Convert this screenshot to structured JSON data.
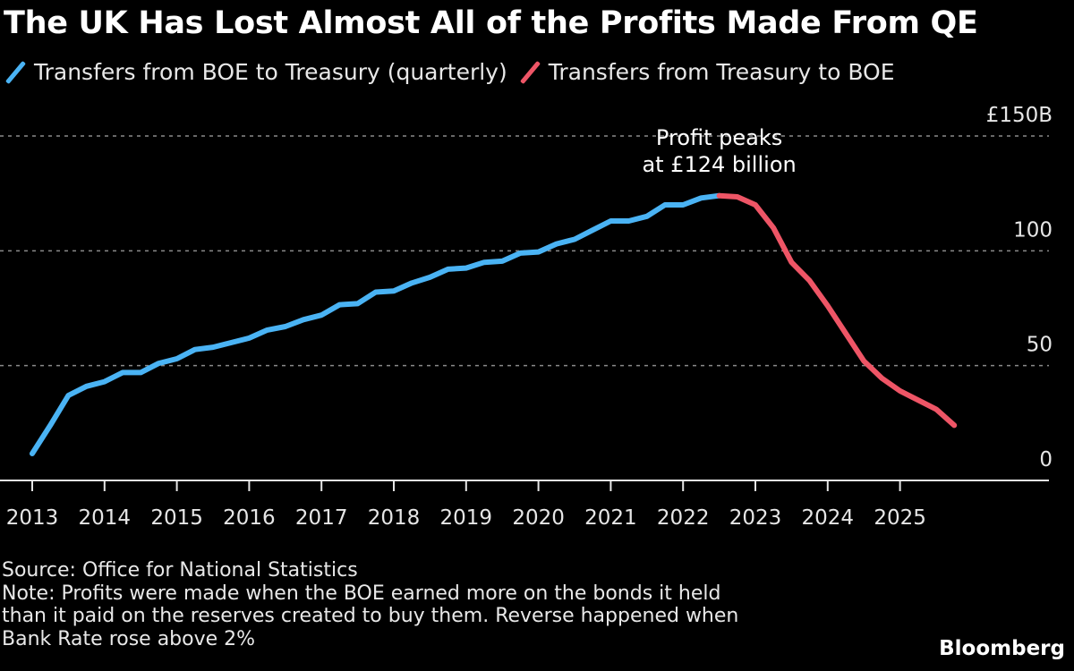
{
  "title": "The UK Has Lost Almost All of the Profits Made From QE",
  "legend": [
    {
      "label": "Transfers from BOE to Treasury (quarterly)",
      "color": "#4ab3f4",
      "icon": "line-swatch-icon"
    },
    {
      "label": "Transfers from Treasury to BOE",
      "color": "#ee5566",
      "icon": "line-swatch-icon"
    }
  ],
  "annotation": {
    "line1": "Profit peaks",
    "line2": "at £124 billion"
  },
  "footer": {
    "source": "Source: Office for National Statistics",
    "note_lines": [
      "Note: Profits were made when the BOE earned more on the bonds it held",
      "than it paid on the reserves created to buy them. Reverse happened when",
      "Bank Rate rose above 2%"
    ],
    "brand": "Bloomberg"
  },
  "chart_data": {
    "type": "line",
    "title": "The UK Has Lost Almost All of the Profits Made From QE",
    "xlabel": "",
    "ylabel": "",
    "ylim": [
      0,
      150
    ],
    "xlim": [
      2013,
      2026.4
    ],
    "grid": true,
    "legend_position": "top-left",
    "y_ticks": [
      {
        "value": 0,
        "label": "0"
      },
      {
        "value": 50,
        "label": "50"
      },
      {
        "value": 100,
        "label": "100"
      },
      {
        "value": 150,
        "label": "£150B"
      }
    ],
    "x_ticks": [
      {
        "value": 2013,
        "label": "2013"
      },
      {
        "value": 2014,
        "label": "2014"
      },
      {
        "value": 2015,
        "label": "2015"
      },
      {
        "value": 2016,
        "label": "2016"
      },
      {
        "value": 2017,
        "label": "2017"
      },
      {
        "value": 2018,
        "label": "2018"
      },
      {
        "value": 2019,
        "label": "2019"
      },
      {
        "value": 2020,
        "label": "2020"
      },
      {
        "value": 2021,
        "label": "2021"
      },
      {
        "value": 2022,
        "label": "2022"
      },
      {
        "value": 2023,
        "label": "2023"
      },
      {
        "value": 2024,
        "label": "2024"
      },
      {
        "value": 2025,
        "label": "2025"
      }
    ],
    "series": [
      {
        "name": "Transfers from BOE to Treasury (quarterly)",
        "color": "#4ab3f4",
        "x": [
          2013.0,
          2013.25,
          2013.5,
          2013.75,
          2014.0,
          2014.25,
          2014.5,
          2014.75,
          2015.0,
          2015.25,
          2015.5,
          2015.75,
          2016.0,
          2016.25,
          2016.5,
          2016.75,
          2017.0,
          2017.25,
          2017.5,
          2017.75,
          2018.0,
          2018.25,
          2018.5,
          2018.75,
          2019.0,
          2019.25,
          2019.5,
          2019.75,
          2020.0,
          2020.25,
          2020.5,
          2020.75,
          2021.0,
          2021.25,
          2021.5,
          2021.75,
          2022.0,
          2022.25,
          2022.5
        ],
        "values": [
          11.7,
          24,
          37,
          41,
          43,
          47,
          47,
          51,
          53,
          57,
          58,
          60,
          62,
          65.5,
          67,
          70,
          72,
          76.5,
          77,
          82,
          82.5,
          86,
          88.5,
          92,
          92.5,
          95,
          95.5,
          99,
          99.5,
          103,
          105,
          109,
          113,
          113,
          115,
          120,
          120,
          123,
          124
        ]
      },
      {
        "name": "Transfers from Treasury to BOE",
        "color": "#ee5566",
        "x": [
          2022.5,
          2022.75,
          2023.0,
          2023.25,
          2023.5,
          2023.75,
          2024.0,
          2024.25,
          2024.5,
          2024.75,
          2025.0,
          2025.25,
          2025.5,
          2025.75
        ],
        "values": [
          124,
          123.5,
          120,
          110,
          95,
          87,
          76,
          64,
          52,
          44.5,
          39,
          35,
          31,
          24
        ]
      }
    ],
    "annotations": [
      {
        "text": "Profit peaks at £124 billion",
        "x": 2022.5,
        "y": 124
      }
    ]
  }
}
